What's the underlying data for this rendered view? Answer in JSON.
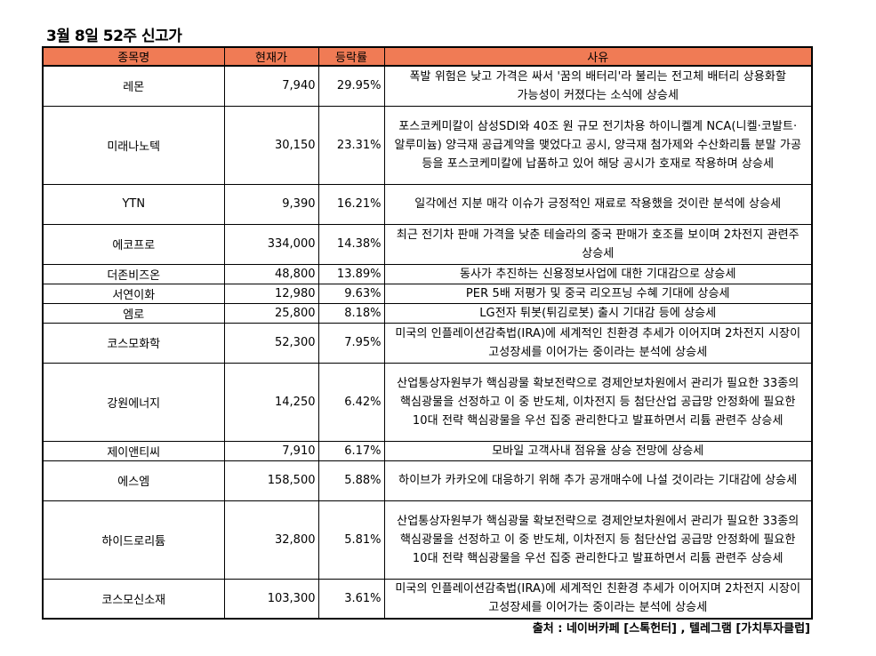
{
  "title": "3월 8일 52주 신고가",
  "columns": [
    "종목명",
    "현재가",
    "등락률",
    "사유"
  ],
  "rows": [
    {
      "name": "레몬",
      "price": "7,940",
      "change": "29.95%",
      "reason": "폭발 위험은 낮고 가격은 싸서 '꿈의 배터리'라 불리는 전고체 배터리 상용화할 가능성이 커졌다는 소식에 상승세"
    },
    {
      "name": "미래나노텍",
      "price": "30,150",
      "change": "23.31%",
      "reason": "포스코케미칼이 삼성SDI와 40조 원 규모 전기차용 하이니켈계 NCA(니켈·코발트·알루미늄) 양극재 공급계약을 맺었다고 공시, 양극재 첨가제와 수산화리튬 분말 가공 등을 포스코케미칼에 납품하고 있어 해당 공시가 호재로 작용하며 상승세"
    },
    {
      "name": "YTN",
      "price": "9,390",
      "change": "16.21%",
      "reason": "일각에선 지분 매각 이슈가 긍정적인 재료로 작용했을 것이란 분석에 상승세"
    },
    {
      "name": "에코프로",
      "price": "334,000",
      "change": "14.38%",
      "reason": "최근 전기차 판매 가격을 낮춘 테슬라의 중국 판매가 호조를 보이며 2차전지 관련주 상승세"
    },
    {
      "name": "더존비즈온",
      "price": "48,800",
      "change": "13.89%",
      "reason": "동사가 추진하는 신용정보사업에 대한 기대감으로 상승세"
    },
    {
      "name": "서연이화",
      "price": "12,980",
      "change": "9.63%",
      "reason": "PER 5배 저평가 및 중국 리오프닝 수혜 기대에 상승세"
    },
    {
      "name": "엠로",
      "price": "25,800",
      "change": "8.18%",
      "reason": "LG전자 튀봇(튀김로봇) 출시 기대감 등에 상승세"
    },
    {
      "name": "코스모화학",
      "price": "52,300",
      "change": "7.95%",
      "reason": "미국의 인플레이션감축법(IRA)에 세계적인 친환경 추세가 이어지며 2차전지 시장이 고성장세를 이어가는 중이라는 분석에 상승세"
    },
    {
      "name": "강원에너지",
      "price": "14,250",
      "change": "6.42%",
      "reason": "산업통상자원부가 핵심광물 확보전략으로 경제안보차원에서 관리가 필요한 33종의 핵심광물을 선정하고 이 중 반도체, 이차전지 등 첨단산업 공급망 안정화에 필요한 10대 전략 핵심광물을 우선 집중 관리한다고 발표하면서 리튬 관련주 상승세"
    },
    {
      "name": "제이앤티씨",
      "price": "7,910",
      "change": "6.17%",
      "reason": "모바일 고객사내 점유율 상승 전망에 상승세"
    },
    {
      "name": "에스엠",
      "price": "158,500",
      "change": "5.88%",
      "reason": "하이브가 카카오에 대응하기 위해 추가 공개매수에 나설 것이라는 기대감에 상승세"
    },
    {
      "name": "하이드로리튬",
      "price": "32,800",
      "change": "5.81%",
      "reason": "산업통상자원부가 핵심광물 확보전략으로 경제안보차원에서 관리가 필요한 33종의 핵심광물을 선정하고 이 중 반도체, 이차전지 등 첨단산업 공급망 안정화에 필요한 10대 전략 핵심광물을 우선 집중 관리한다고 발표하면서 리튬 관련주 상승세"
    },
    {
      "name": "코스모신소재",
      "price": "103,300",
      "change": "3.61%",
      "reason": "미국의 인플레이션감축법(IRA)에 세계적인 친환경 추세가 이어지며 2차전지 시장이 고성장세를 이어가는 중이라는 분석에 상승세"
    }
  ],
  "source": "출처 : 네이버카페 [스톡헌터] , 텔레그램 [가치투자클럽]",
  "colors": {
    "header_bg": "#f07b55"
  }
}
